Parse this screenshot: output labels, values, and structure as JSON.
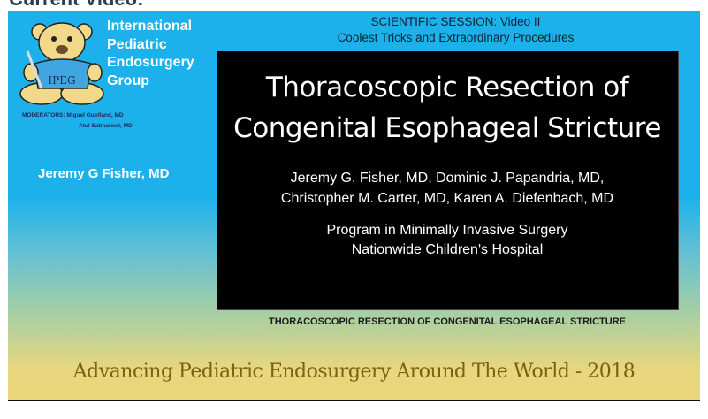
{
  "page": {
    "heading": "Current Video:"
  },
  "video": {
    "logo_text": "IPEG",
    "org_lines": [
      "International",
      "Pediatric",
      "Endosurgery",
      "Group"
    ],
    "moderators": [
      "MODERATORS: Miguel Guelfand, MD",
      "Atul Sabharwal, MD"
    ],
    "presenter": "Jeremy G Fisher, MD",
    "session": [
      "SCIENTIFIC SESSION: Video II",
      "Coolest Tricks and Extraordinary Procedures"
    ],
    "slide": {
      "title": [
        "Thoracoscopic Resection of",
        "Congenital Esophageal Stricture"
      ],
      "authors": [
        "Jeremy G. Fisher, MD, Dominic J. Papandria, MD,",
        "Christopher M. Carter, MD, Karen A. Diefenbach, MD"
      ],
      "institution": [
        "Program in Minimally Invasive Surgery",
        "Nationwide Children's Hospital"
      ]
    },
    "caption": "THORACOSCOPIC RESECTION OF CONGENITAL ESOPHAGEAL STRICTURE",
    "tagline": "Advancing Pediatric Endosurgery Around The World - 2018"
  },
  "colors": {
    "frame_top": "#1db1eb",
    "frame_bottom": "#ecd67a",
    "tagline": "#7a6212"
  }
}
